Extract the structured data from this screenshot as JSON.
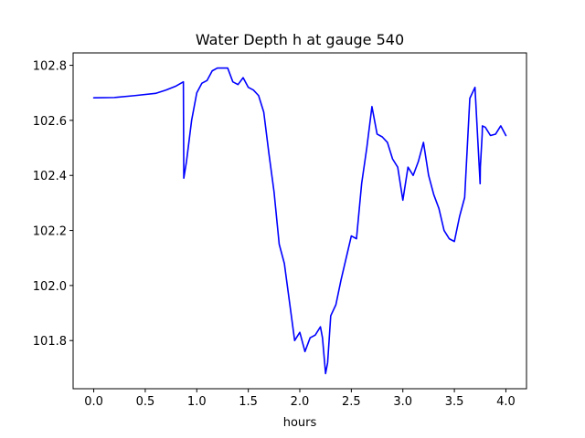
{
  "chart_data": {
    "type": "line",
    "title": "Water Depth h at gauge 540",
    "xlabel": "hours",
    "ylabel": "",
    "xlim": [
      -0.2,
      4.2
    ],
    "ylim": [
      101.625,
      102.845
    ],
    "xticks": [
      0.0,
      0.5,
      1.0,
      1.5,
      2.0,
      2.5,
      3.0,
      3.5,
      4.0
    ],
    "xtick_labels": [
      "0.0",
      "0.5",
      "1.0",
      "1.5",
      "2.0",
      "2.5",
      "3.0",
      "3.5",
      "4.0"
    ],
    "yticks": [
      101.8,
      102.0,
      102.2,
      102.4,
      102.6,
      102.8
    ],
    "ytick_labels": [
      "101.8",
      "102.0",
      "102.2",
      "102.4",
      "102.6",
      "102.8"
    ],
    "grid": false,
    "series": [
      {
        "name": "",
        "color": "#0000ff",
        "x": [
          0.0,
          0.2,
          0.4,
          0.6,
          0.7,
          0.8,
          0.87,
          0.874,
          0.9,
          0.95,
          1.0,
          1.05,
          1.1,
          1.15,
          1.2,
          1.3,
          1.35,
          1.4,
          1.45,
          1.5,
          1.55,
          1.6,
          1.65,
          1.7,
          1.75,
          1.8,
          1.85,
          1.9,
          1.95,
          2.0,
          2.05,
          2.1,
          2.15,
          2.2,
          2.22,
          2.25,
          2.27,
          2.3,
          2.35,
          2.4,
          2.45,
          2.5,
          2.55,
          2.6,
          2.65,
          2.7,
          2.75,
          2.8,
          2.85,
          2.9,
          2.95,
          3.0,
          3.05,
          3.1,
          3.15,
          3.2,
          3.25,
          3.3,
          3.35,
          3.4,
          3.45,
          3.5,
          3.55,
          3.6,
          3.65,
          3.7,
          3.75,
          3.752,
          3.77,
          3.772,
          3.8,
          3.85,
          3.9,
          3.95,
          4.0
        ],
        "y": [
          102.682,
          102.683,
          102.69,
          102.698,
          102.71,
          102.725,
          102.74,
          102.39,
          102.45,
          102.6,
          102.7,
          102.735,
          102.745,
          102.78,
          102.79,
          102.79,
          102.74,
          102.73,
          102.755,
          102.72,
          102.71,
          102.69,
          102.63,
          102.48,
          102.34,
          102.15,
          102.08,
          101.94,
          101.8,
          101.83,
          101.76,
          101.81,
          101.82,
          101.85,
          101.81,
          101.68,
          101.72,
          101.89,
          101.93,
          102.02,
          102.1,
          102.18,
          102.17,
          102.37,
          102.5,
          102.65,
          102.55,
          102.54,
          102.52,
          102.46,
          102.43,
          102.31,
          102.43,
          102.4,
          102.45,
          102.52,
          102.4,
          102.33,
          102.28,
          102.2,
          102.17,
          102.16,
          102.25,
          102.32,
          102.68,
          102.72,
          102.37,
          102.43,
          102.55,
          102.58,
          102.575,
          102.545,
          102.55,
          102.58,
          102.545
        ]
      }
    ]
  }
}
